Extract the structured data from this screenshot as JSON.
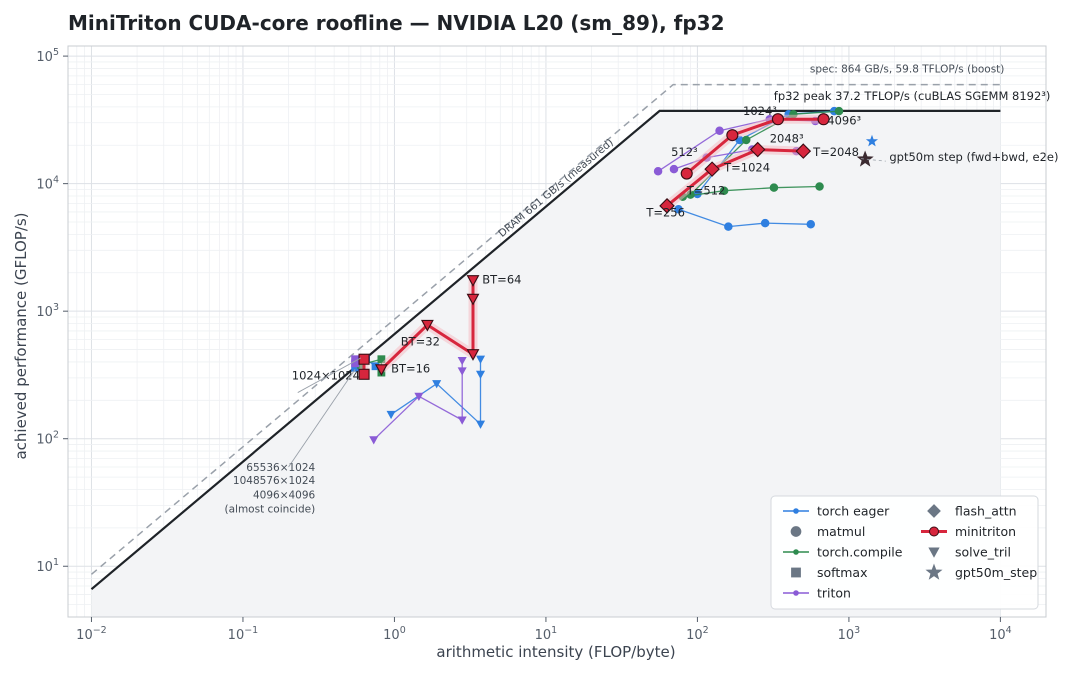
{
  "chart_data": {
    "type": "scatter",
    "title": "MiniTriton CUDA-core roofline — NVIDIA L20 (sm_89), fp32",
    "xlabel": "arithmetic intensity (FLOP/byte)",
    "ylabel": "achieved performance (GFLOP/s)",
    "xscale": "log",
    "yscale": "log",
    "xlim": [
      0.007,
      20000
    ],
    "ylim": [
      4,
      120000
    ],
    "x_ticks": [
      {
        "value": 0.01,
        "base": "10",
        "exp": "−2"
      },
      {
        "value": 0.1,
        "base": "10",
        "exp": "−1"
      },
      {
        "value": 1,
        "base": "10",
        "exp": "0"
      },
      {
        "value": 10,
        "base": "10",
        "exp": "1"
      },
      {
        "value": 100,
        "base": "10",
        "exp": "2"
      },
      {
        "value": 1000,
        "base": "10",
        "exp": "3"
      },
      {
        "value": 10000,
        "base": "10",
        "exp": "4"
      }
    ],
    "y_ticks": [
      {
        "value": 10,
        "base": "10",
        "exp": "1"
      },
      {
        "value": 100,
        "base": "10",
        "exp": "2"
      },
      {
        "value": 1000,
        "base": "10",
        "exp": "3"
      },
      {
        "value": 10000,
        "base": "10",
        "exp": "4"
      },
      {
        "value": 100000,
        "base": "10",
        "exp": "5"
      }
    ],
    "grid": true,
    "legend_position": "lower-right",
    "colors": {
      "torch_eager": "#2f7fe0",
      "torch_compile": "#2e8b4f",
      "triton": "#8a5bd6",
      "minitriton": "#d7263d",
      "roof": "#1f2328",
      "spec_roof": "#9aa1aa",
      "marker_gray": "#6b7785"
    },
    "roofline": {
      "measured": {
        "label": "DRAM 661 GB/s (measured)",
        "bandwidth_gbs": 661,
        "peak_gflops": 37200,
        "peak_label": "fp32 peak 37.2 TFLOP/s (cuBLAS SGEMM 8192³)"
      },
      "spec": {
        "label": "spec: 864 GB/s, 59.8 TFLOP/s (boost)",
        "bandwidth_gbs": 864,
        "peak_gflops": 59800
      }
    },
    "series": [
      {
        "name": "torch eager",
        "color": "#2f7fe0",
        "groups": [
          {
            "kernel": "matmul",
            "points": [
              [
                75,
                6300
              ],
              [
                160,
                4600
              ],
              [
                280,
                4900
              ],
              [
                560,
                4800
              ]
            ]
          },
          {
            "kernel": "matmul",
            "points": [
              [
                100,
                8300
              ],
              [
                190,
                22000
              ],
              [
                400,
                35000
              ],
              [
                800,
                37000
              ]
            ]
          },
          {
            "kernel": "softmax",
            "points": [
              [
                0.55,
                360
              ],
              [
                0.65,
                420
              ],
              [
                0.75,
                370
              ]
            ]
          },
          {
            "kernel": "solve_tril",
            "points": [
              [
                0.95,
                155
              ],
              [
                1.9,
                270
              ],
              [
                3.7,
                130
              ],
              [
                3.7,
                320
              ],
              [
                3.7,
                420
              ]
            ]
          }
        ]
      },
      {
        "name": "torch.compile",
        "color": "#2e8b4f",
        "groups": [
          {
            "kernel": "matmul",
            "points": [
              [
                80,
                7900
              ],
              [
                150,
                8800
              ],
              [
                320,
                9300
              ],
              [
                640,
                9500
              ]
            ]
          },
          {
            "kernel": "matmul",
            "points": [
              [
                90,
                8200
              ],
              [
                210,
                22000
              ],
              [
                430,
                35000
              ],
              [
                860,
                37000
              ]
            ]
          },
          {
            "kernel": "softmax",
            "points": [
              [
                0.6,
                380
              ],
              [
                0.82,
                420
              ],
              [
                0.82,
                330
              ]
            ]
          }
        ]
      },
      {
        "name": "triton",
        "color": "#8a5bd6",
        "groups": [
          {
            "kernel": "matmul",
            "points": [
              [
                55,
                12500
              ],
              [
                140,
                26000
              ],
              [
                300,
                32000
              ],
              [
                600,
                31000
              ]
            ]
          },
          {
            "kernel": "matmul",
            "points": [
              [
                70,
                13000
              ],
              [
                115,
                16000
              ],
              [
                230,
                18500
              ],
              [
                450,
                18000
              ]
            ]
          },
          {
            "kernel": "softmax",
            "points": [
              [
                0.55,
                420
              ],
              [
                0.55,
                390
              ]
            ]
          },
          {
            "kernel": "solve_tril",
            "points": [
              [
                0.73,
                98
              ],
              [
                1.45,
                215
              ],
              [
                2.8,
                140
              ],
              [
                2.8,
                340
              ],
              [
                2.8,
                410
              ]
            ]
          }
        ]
      },
      {
        "name": "minitriton",
        "color": "#d7263d",
        "groups": [
          {
            "kernel": "flash_attn",
            "points": [
              [
                63,
                6700
              ],
              [
                125,
                13000
              ],
              [
                250,
                18500
              ],
              [
                500,
                18000
              ]
            ]
          },
          {
            "kernel": "matmul",
            "points": [
              [
                85,
                12000
              ],
              [
                170,
                24000
              ],
              [
                340,
                32000
              ],
              [
                680,
                32000
              ]
            ]
          },
          {
            "kernel": "softmax",
            "points": [
              [
                0.63,
                420
              ],
              [
                0.63,
                320
              ]
            ]
          },
          {
            "kernel": "solve_tril",
            "points": [
              [
                0.82,
                350
              ],
              [
                1.65,
                780
              ],
              [
                3.3,
                460
              ],
              [
                3.3,
                1250
              ],
              [
                3.3,
                1750
              ]
            ]
          }
        ]
      },
      {
        "name": "gpt50m_step",
        "color": "#3b2a30",
        "groups": [
          {
            "kernel": "gpt50m_step",
            "points": [
              [
                1280,
                15500
              ]
            ]
          }
        ]
      }
    ],
    "extra_points": [
      {
        "name": "gpt50m_step blue star",
        "color": "#2f7fe0",
        "x": 1420,
        "y": 21500
      }
    ],
    "annotations": [
      {
        "text": "1024³",
        "x": 200,
        "y": 34500
      },
      {
        "text": "512³",
        "x": 67,
        "y": 16500
      },
      {
        "text": "4096³",
        "x": 720,
        "y": 29000
      },
      {
        "text": "2048³",
        "x": 300,
        "y": 21000
      },
      {
        "text": "T=2048",
        "x": 580,
        "y": 16500
      },
      {
        "text": "T=1024",
        "x": 150,
        "y": 12500
      },
      {
        "text": "T=512",
        "x": 85,
        "y": 8200
      },
      {
        "text": "T=256",
        "x": 46,
        "y": 5500
      },
      {
        "text": "gpt50m step (fwd+bwd, e2e)",
        "x": 1850,
        "y": 15000
      },
      {
        "text": "BT=64",
        "x": 3.8,
        "y": 1650
      },
      {
        "text": "BT=32",
        "x": 1.1,
        "y": 540
      },
      {
        "text": "BT=16",
        "x": 0.95,
        "y": 330
      },
      {
        "text": "1024×1024",
        "x": 0.21,
        "y": 290
      },
      {
        "text": "65536×1024",
        "x": 0.3,
        "y": 56
      },
      {
        "text": "1048576×1024",
        "x": 0.3,
        "y": 44
      },
      {
        "text": "4096×4096",
        "x": 0.3,
        "y": 34
      },
      {
        "text": "(almost coincide)",
        "x": 0.3,
        "y": 26.5
      }
    ],
    "legend": [
      {
        "label": "torch eager",
        "kind": "line",
        "color": "#2f7fe0"
      },
      {
        "label": "flash_attn",
        "kind": "diamond",
        "color": "#6b7785"
      },
      {
        "label": "matmul",
        "kind": "circle",
        "color": "#6b7785"
      },
      {
        "label": "minitriton",
        "kind": "line-circle",
        "color": "#d7263d"
      },
      {
        "label": "torch.compile",
        "kind": "line",
        "color": "#2e8b4f"
      },
      {
        "label": "solve_tril",
        "kind": "triangle",
        "color": "#6b7785"
      },
      {
        "label": "softmax",
        "kind": "square",
        "color": "#6b7785"
      },
      {
        "label": "gpt50m_step",
        "kind": "star",
        "color": "#6b7785"
      },
      {
        "label": "triton",
        "kind": "line",
        "color": "#8a5bd6"
      }
    ]
  }
}
